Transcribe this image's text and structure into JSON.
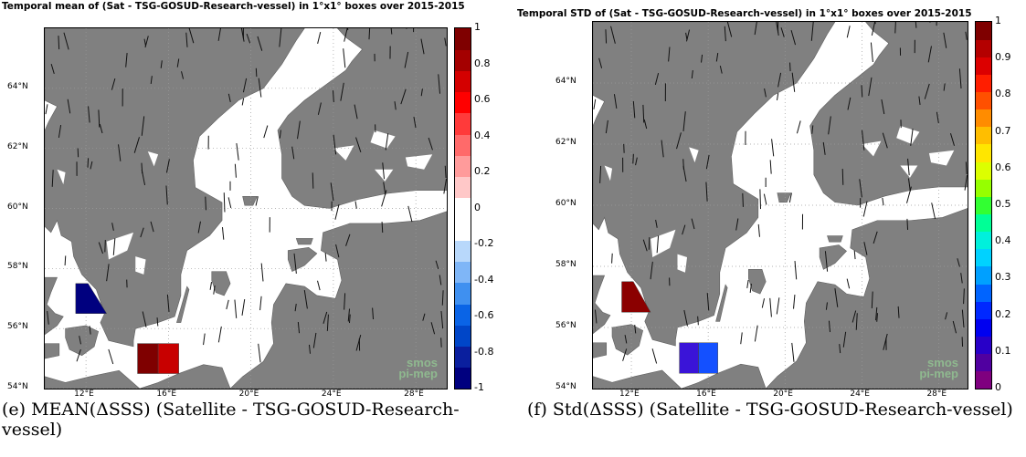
{
  "chart_data": [
    {
      "type": "heatmap",
      "title": "Temporal mean of (Sat - TSG-GOSUD-Research-vessel) in 1°x1° boxes over 2015-2015",
      "caption": "(e) MEAN(ΔSSS) (Satellite - TSG-GOSUD-Research-vessel)",
      "xlim": [
        10,
        29.5
      ],
      "ylim": [
        54,
        66
      ],
      "xticks": [
        "12°E",
        "16°E",
        "20°E",
        "24°E",
        "28°E"
      ],
      "xtick_values": [
        12,
        16,
        20,
        24,
        28
      ],
      "yticks": [
        "54°N",
        "56°N",
        "58°N",
        "60°N",
        "62°N",
        "64°N"
      ],
      "ytick_values": [
        54,
        56,
        58,
        60,
        62,
        64
      ],
      "colorbar": {
        "min": -1,
        "max": 1,
        "ticks": [
          "-1",
          "-0.8",
          "-0.6",
          "-0.4",
          "-0.2",
          "0",
          "0.2",
          "0.4",
          "0.6",
          "0.8",
          "1"
        ],
        "colors": [
          "#00007f",
          "#0a1f9e",
          "#0046c8",
          "#0a64e6",
          "#3f90f0",
          "#7fb6f7",
          "#b8d8fb",
          "#ffffff",
          "#ffffff",
          "#ffc8c8",
          "#ff9b9b",
          "#ff6a6a",
          "#ff3a3a",
          "#ff0000",
          "#d40000",
          "#a40000",
          "#7f0000"
        ]
      },
      "cells": [
        {
          "lon": [
            11.5,
            13
          ],
          "lat": [
            56.5,
            57.5
          ],
          "value": -1.0,
          "color": "#00007f",
          "shape": "triangle"
        },
        {
          "lon": [
            14.5,
            15.5
          ],
          "lat": [
            54.5,
            55.5
          ],
          "value": 0.95,
          "color": "#7f0000"
        },
        {
          "lon": [
            15.5,
            16.5
          ],
          "lat": [
            54.5,
            55.5
          ],
          "value": 0.8,
          "color": "#c80000"
        }
      ],
      "grid": true,
      "logo": [
        "smos",
        "pi-mep"
      ]
    },
    {
      "type": "heatmap",
      "title": "Temporal STD of (Sat - TSG-GOSUD-Research-vessel) in 1°x1° boxes over 2015-2015",
      "caption": "(f) Std(ΔSSS) (Satellite - TSG-GOSUD-Research-vessel)",
      "xlim": [
        10,
        29.5
      ],
      "ylim": [
        54,
        66
      ],
      "xticks": [
        "12°E",
        "16°E",
        "20°E",
        "24°E",
        "28°E"
      ],
      "xtick_values": [
        12,
        16,
        20,
        24,
        28
      ],
      "yticks": [
        "54°N",
        "56°N",
        "58°N",
        "60°N",
        "62°N",
        "64°N"
      ],
      "ytick_values": [
        54,
        56,
        58,
        60,
        62,
        64
      ],
      "colorbar": {
        "min": 0,
        "max": 1,
        "ticks": [
          "0",
          "0.1",
          "0.2",
          "0.3",
          "0.4",
          "0.5",
          "0.6",
          "0.7",
          "0.8",
          "0.9",
          "1"
        ],
        "colors": [
          "#7f007f",
          "#5000a0",
          "#2800c8",
          "#0000f0",
          "#0028ff",
          "#0064ff",
          "#00a0ff",
          "#00d2ff",
          "#00f0dc",
          "#00ff96",
          "#32ff32",
          "#96ff00",
          "#dcff00",
          "#ffe600",
          "#ffbe00",
          "#ff8c00",
          "#ff5000",
          "#ff1e00",
          "#dc0000",
          "#b40000",
          "#7f0000"
        ]
      },
      "cells": [
        {
          "lon": [
            11.5,
            13
          ],
          "lat": [
            56.5,
            57.5
          ],
          "value": 0.98,
          "color": "#8b0000",
          "shape": "triangle"
        },
        {
          "lon": [
            14.5,
            15.5
          ],
          "lat": [
            54.5,
            55.5
          ],
          "value": 0.13,
          "color": "#3a14d8"
        },
        {
          "lon": [
            15.5,
            16.5
          ],
          "lat": [
            54.5,
            55.5
          ],
          "value": 0.27,
          "color": "#1450ff"
        }
      ],
      "grid": true,
      "logo": [
        "smos",
        "pi-mep"
      ]
    }
  ],
  "colors": {
    "land": "#808080",
    "water": "#ffffff",
    "grid": "#9a9a9a"
  }
}
